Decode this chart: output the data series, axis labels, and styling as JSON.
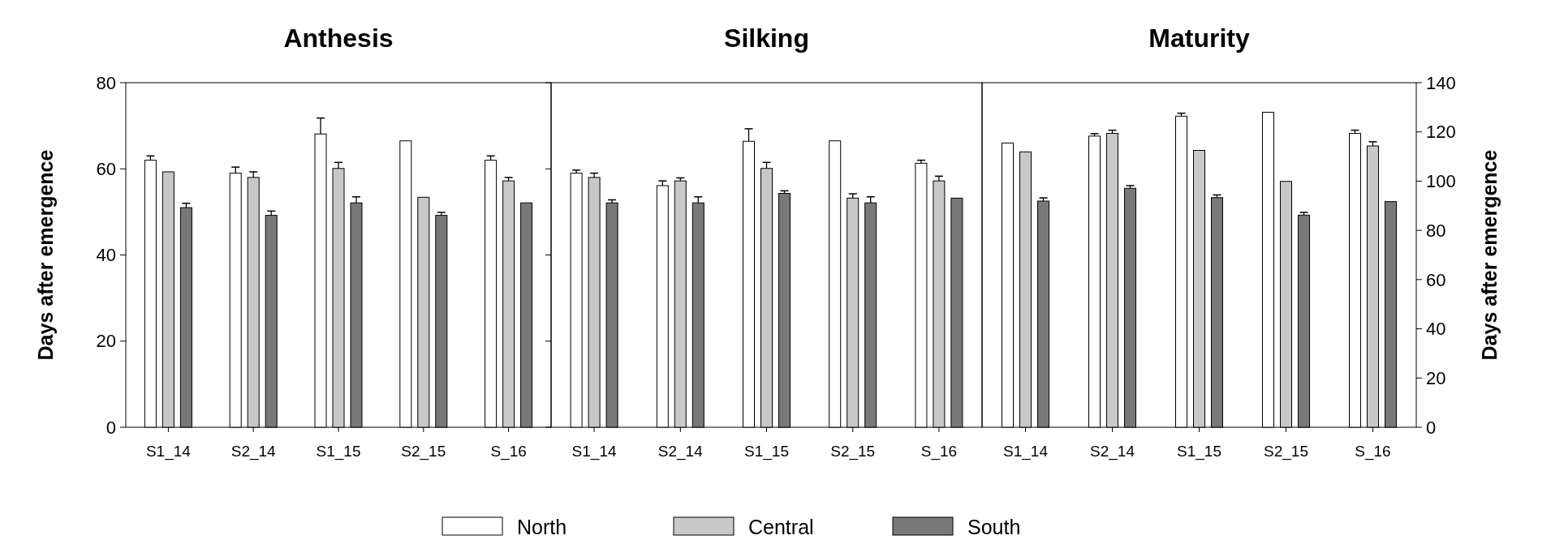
{
  "chart_data": [
    {
      "type": "bar",
      "title": "Anthesis",
      "ylabel": "Days after emergence",
      "categories": [
        "S1_14",
        "S2_14",
        "S1_15",
        "S2_15",
        "S_16"
      ],
      "ylim": [
        0,
        80
      ],
      "yticks": [
        0,
        20,
        40,
        60,
        80
      ],
      "legend": "bottom",
      "series": [
        {
          "name": "North",
          "color": "#ffffff",
          "values": [
            62.0,
            59.0,
            68.1,
            66.5,
            62.0
          ],
          "errors": [
            1.0,
            1.4,
            3.7,
            null,
            1.0
          ]
        },
        {
          "name": "Central",
          "color": "#c8c8c8",
          "values": [
            59.3,
            58.0,
            60.1,
            53.4,
            57.2
          ],
          "errors": [
            null,
            1.3,
            1.4,
            null,
            0.8
          ]
        },
        {
          "name": "South",
          "color": "#787878",
          "values": [
            51.0,
            49.2,
            52.1,
            49.2,
            52.1
          ],
          "errors": [
            1.0,
            1.0,
            1.4,
            0.7,
            null
          ]
        }
      ]
    },
    {
      "type": "bar",
      "title": "Silking",
      "categories": [
        "S1_14",
        "S2_14",
        "S1_15",
        "S2_15",
        "S_16"
      ],
      "ylim": [
        0,
        80
      ],
      "yticks": [
        0,
        20,
        40,
        60,
        80
      ],
      "tick_labels": "x",
      "series": [
        {
          "color": "#ffffff",
          "values": [
            59.0,
            56.1,
            66.4,
            66.5,
            61.3
          ],
          "errors": [
            0.7,
            1.1,
            2.9,
            null,
            0.7
          ]
        },
        {
          "color": "#c8c8c8",
          "values": [
            58.0,
            57.2,
            60.1,
            53.2,
            57.2
          ],
          "errors": [
            1.0,
            0.7,
            1.4,
            1.0,
            1.1
          ]
        },
        {
          "color": "#787878",
          "values": [
            52.1,
            52.1,
            54.3,
            52.1,
            53.2
          ],
          "errors": [
            0.7,
            1.4,
            0.6,
            1.4,
            null
          ]
        }
      ]
    },
    {
      "type": "bar",
      "title": "Maturity",
      "y2label": "Days after emergence",
      "categories": [
        "S1_14",
        "S2_14",
        "S1_15",
        "S2_15",
        "S_16"
      ],
      "y2lim": [
        0,
        140
      ],
      "y2ticks": [
        0,
        20,
        40,
        60,
        80,
        100,
        120,
        140
      ],
      "series": [
        {
          "color": "#ffffff",
          "axis": "y2",
          "values": [
            115.5,
            118.3,
            126.4,
            128.0,
            119.4
          ],
          "errors": [
            null,
            1.0,
            1.2,
            null,
            1.3
          ]
        },
        {
          "color": "#c8c8c8",
          "axis": "y2",
          "values": [
            111.9,
            119.4,
            112.5,
            99.9,
            114.3
          ],
          "errors": [
            null,
            1.3,
            null,
            null,
            1.7
          ]
        },
        {
          "color": "#787878",
          "axis": "y2",
          "values": [
            91.9,
            97.1,
            93.3,
            86.2,
            91.7
          ],
          "errors": [
            1.3,
            1.1,
            1.1,
            1.1,
            null
          ]
        }
      ]
    }
  ]
}
